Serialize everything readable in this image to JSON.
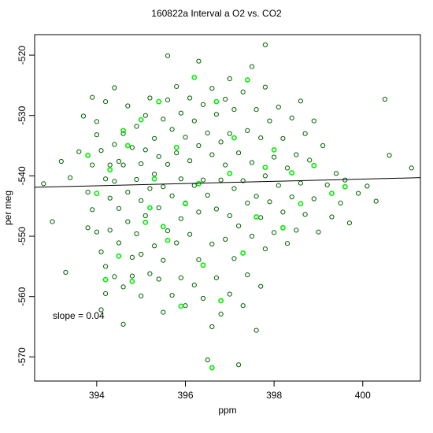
{
  "chart_data": {
    "type": "scatter",
    "title": "160822a   Interval a O2 vs. CO2",
    "xlabel": "ppm",
    "ylabel": "per meg",
    "xlim": [
      392.6,
      401.3
    ],
    "ylim": [
      -574.0,
      -516.6
    ],
    "xticks": [
      394,
      396,
      398,
      400
    ],
    "yticks": [
      -520,
      -530,
      -540,
      -550,
      -560,
      -570
    ],
    "grid": false,
    "annotation": "slope =  0.04",
    "fit_line": {
      "slope": 0.04,
      "x": [
        392.6,
        401.3
      ],
      "y": [
        -541.9,
        -540.3
      ]
    },
    "colors": {
      "series_a": "#006400",
      "series_b": "#00ee00",
      "fit": "#000000"
    },
    "series": [
      {
        "points": [
          [
            392.8,
            -541.3
          ],
          [
            393.0,
            -547.6
          ],
          [
            393.2,
            -537.6
          ],
          [
            393.3,
            -556.0
          ],
          [
            393.4,
            -540.3
          ],
          [
            393.6,
            -536.0
          ],
          [
            393.7,
            -530.1
          ],
          [
            393.8,
            -542.7
          ],
          [
            393.8,
            -548.6
          ],
          [
            393.9,
            -527.0
          ],
          [
            393.9,
            -538.2
          ],
          [
            393.9,
            -545.6
          ],
          [
            394.0,
            -531.0
          ],
          [
            394.0,
            -533.2
          ],
          [
            394.0,
            -549.3
          ],
          [
            394.1,
            -535.8
          ],
          [
            394.1,
            -552.6
          ],
          [
            394.1,
            -562.2
          ],
          [
            394.2,
            -540.5
          ],
          [
            394.2,
            -555.0
          ],
          [
            394.2,
            -559.5
          ],
          [
            394.2,
            -527.7
          ],
          [
            394.3,
            -538.2
          ],
          [
            394.3,
            -543.7
          ],
          [
            394.3,
            -549.0
          ],
          [
            394.4,
            -534.8
          ],
          [
            394.4,
            -540.9
          ],
          [
            394.4,
            -556.7
          ],
          [
            394.4,
            -525.4
          ],
          [
            394.5,
            -537.6
          ],
          [
            394.5,
            -545.4
          ],
          [
            394.5,
            -551.1
          ],
          [
            394.6,
            -533.0
          ],
          [
            394.6,
            -558.4
          ],
          [
            394.6,
            -538.2
          ],
          [
            394.6,
            -564.6
          ],
          [
            394.7,
            -528.4
          ],
          [
            394.7,
            -542.7
          ],
          [
            394.7,
            -547.6
          ],
          [
            394.8,
            -535.3
          ],
          [
            394.8,
            -553.5
          ],
          [
            394.8,
            -556.6
          ],
          [
            394.9,
            -531.8
          ],
          [
            394.9,
            -540.6
          ],
          [
            394.9,
            -549.6
          ],
          [
            395.0,
            -538.0
          ],
          [
            395.0,
            -544.1
          ],
          [
            395.0,
            -553.0
          ],
          [
            395.0,
            -559.9
          ],
          [
            395.1,
            -530.0
          ],
          [
            395.1,
            -535.7
          ],
          [
            395.1,
            -546.6
          ],
          [
            395.2,
            -542.1
          ],
          [
            395.2,
            -556.2
          ],
          [
            395.2,
            -527.1
          ],
          [
            395.3,
            -533.8
          ],
          [
            395.3,
            -539.7
          ],
          [
            395.3,
            -551.6
          ],
          [
            395.4,
            -536.8
          ],
          [
            395.4,
            -545.3
          ],
          [
            395.4,
            -557.1
          ],
          [
            395.5,
            -530.6
          ],
          [
            395.5,
            -541.8
          ],
          [
            395.5,
            -554.0
          ],
          [
            395.5,
            -562.6
          ],
          [
            395.6,
            -520.1
          ],
          [
            395.6,
            -527.4
          ],
          [
            395.6,
            -538.1
          ],
          [
            395.6,
            -549.1
          ],
          [
            395.7,
            -532.3
          ],
          [
            395.7,
            -543.3
          ],
          [
            395.7,
            -559.8
          ],
          [
            395.8,
            -525.2
          ],
          [
            395.8,
            -536.2
          ],
          [
            395.8,
            -551.1
          ],
          [
            395.9,
            -529.6
          ],
          [
            395.9,
            -540.5
          ],
          [
            395.9,
            -547.1
          ],
          [
            395.9,
            -556.9
          ],
          [
            396.0,
            -533.6
          ],
          [
            396.0,
            -544.5
          ],
          [
            396.0,
            -561.5
          ],
          [
            396.1,
            -527.1
          ],
          [
            396.1,
            -537.5
          ],
          [
            396.1,
            -549.7
          ],
          [
            396.2,
            -530.9
          ],
          [
            396.2,
            -541.6
          ],
          [
            396.2,
            -558.1
          ],
          [
            396.3,
            -521.0
          ],
          [
            396.3,
            -535.0
          ],
          [
            396.3,
            -546.0
          ],
          [
            396.3,
            -553.9
          ],
          [
            396.4,
            -528.2
          ],
          [
            396.4,
            -540.7
          ],
          [
            396.4,
            -560.3
          ],
          [
            396.5,
            -532.9
          ],
          [
            396.5,
            -543.2
          ],
          [
            396.5,
            -570.5
          ],
          [
            396.6,
            -525.5
          ],
          [
            396.6,
            -536.5
          ],
          [
            396.6,
            -551.3
          ],
          [
            396.6,
            -565.0
          ],
          [
            396.7,
            -529.8
          ],
          [
            396.7,
            -545.5
          ],
          [
            396.7,
            -556.9
          ],
          [
            396.8,
            -534.4
          ],
          [
            396.8,
            -540.7
          ],
          [
            396.8,
            -562.9
          ],
          [
            396.9,
            -527.3
          ],
          [
            396.9,
            -538.2
          ],
          [
            396.9,
            -550.5
          ],
          [
            397.0,
            -523.9
          ],
          [
            397.0,
            -533.0
          ],
          [
            397.0,
            -546.6
          ],
          [
            397.0,
            -559.6
          ],
          [
            397.1,
            -529.0
          ],
          [
            397.1,
            -542.1
          ],
          [
            397.1,
            -553.7
          ],
          [
            397.2,
            -536.2
          ],
          [
            397.2,
            -548.3
          ],
          [
            397.2,
            -571.3
          ],
          [
            397.3,
            -526.1
          ],
          [
            397.3,
            -540.8
          ],
          [
            397.3,
            -561.5
          ],
          [
            397.4,
            -532.5
          ],
          [
            397.4,
            -544.5
          ],
          [
            397.4,
            -556.4
          ],
          [
            397.5,
            -521.9
          ],
          [
            397.5,
            -537.8
          ],
          [
            397.5,
            -550.0
          ],
          [
            397.6,
            -529.0
          ],
          [
            397.6,
            -543.4
          ],
          [
            397.6,
            -565.6
          ],
          [
            397.7,
            -533.7
          ],
          [
            397.7,
            -546.9
          ],
          [
            397.7,
            -558.3
          ],
          [
            397.8,
            -525.3
          ],
          [
            397.8,
            -540.0
          ],
          [
            397.8,
            -552.1
          ],
          [
            397.8,
            -518.3
          ],
          [
            397.9,
            -530.9
          ],
          [
            397.9,
            -544.3
          ],
          [
            398.0,
            -536.9
          ],
          [
            398.0,
            -549.4
          ],
          [
            398.1,
            -528.6
          ],
          [
            398.1,
            -541.6
          ],
          [
            398.2,
            -533.8
          ],
          [
            398.2,
            -546.0
          ],
          [
            398.3,
            -538.7
          ],
          [
            398.3,
            -551.2
          ],
          [
            398.4,
            -530.4
          ],
          [
            398.4,
            -543.5
          ],
          [
            398.5,
            -536.5
          ],
          [
            398.5,
            -549.0
          ],
          [
            398.6,
            -527.6
          ],
          [
            398.6,
            -541.2
          ],
          [
            398.7,
            -533.0
          ],
          [
            398.7,
            -546.4
          ],
          [
            398.8,
            -537.4
          ],
          [
            398.9,
            -530.9
          ],
          [
            398.9,
            -543.8
          ],
          [
            399.0,
            -549.3
          ],
          [
            399.1,
            -535.0
          ],
          [
            399.2,
            -541.5
          ],
          [
            399.3,
            -546.8
          ],
          [
            399.4,
            -539.6
          ],
          [
            399.5,
            -544.5
          ],
          [
            399.6,
            -540.7
          ],
          [
            399.7,
            -547.8
          ],
          [
            399.9,
            -542.9
          ],
          [
            400.1,
            -541.7
          ],
          [
            400.3,
            -544.2
          ],
          [
            400.5,
            -527.3
          ],
          [
            400.6,
            -536.6
          ],
          [
            401.1,
            -538.7
          ]
        ]
      },
      {
        "points": [
          [
            393.8,
            -536.6
          ],
          [
            394.0,
            -542.9
          ],
          [
            394.2,
            -557.2
          ],
          [
            394.3,
            -539.0
          ],
          [
            394.5,
            -553.3
          ],
          [
            394.6,
            -532.5
          ],
          [
            394.7,
            -535.0
          ],
          [
            394.8,
            -557.5
          ],
          [
            395.0,
            -530.7
          ],
          [
            395.1,
            -547.7
          ],
          [
            395.2,
            -545.3
          ],
          [
            395.3,
            -540.5
          ],
          [
            395.4,
            -527.7
          ],
          [
            395.5,
            -548.4
          ],
          [
            395.6,
            -550.7
          ],
          [
            395.8,
            -535.3
          ],
          [
            395.9,
            -561.6
          ],
          [
            396.0,
            -544.6
          ],
          [
            396.2,
            -523.7
          ],
          [
            396.3,
            -541.3
          ],
          [
            396.4,
            -554.8
          ],
          [
            396.6,
            -571.8
          ],
          [
            396.7,
            -527.7
          ],
          [
            396.8,
            -560.7
          ],
          [
            397.0,
            -539.6
          ],
          [
            397.1,
            -533.7
          ],
          [
            397.3,
            -552.8
          ],
          [
            397.4,
            -524.1
          ],
          [
            397.6,
            -546.8
          ],
          [
            397.8,
            -538.6
          ],
          [
            398.0,
            -535.7
          ],
          [
            398.2,
            -548.6
          ],
          [
            398.4,
            -539.5
          ],
          [
            398.6,
            -544.6
          ],
          [
            398.9,
            -538.3
          ],
          [
            399.3,
            -542.9
          ],
          [
            399.6,
            -541.8
          ]
        ]
      }
    ]
  }
}
